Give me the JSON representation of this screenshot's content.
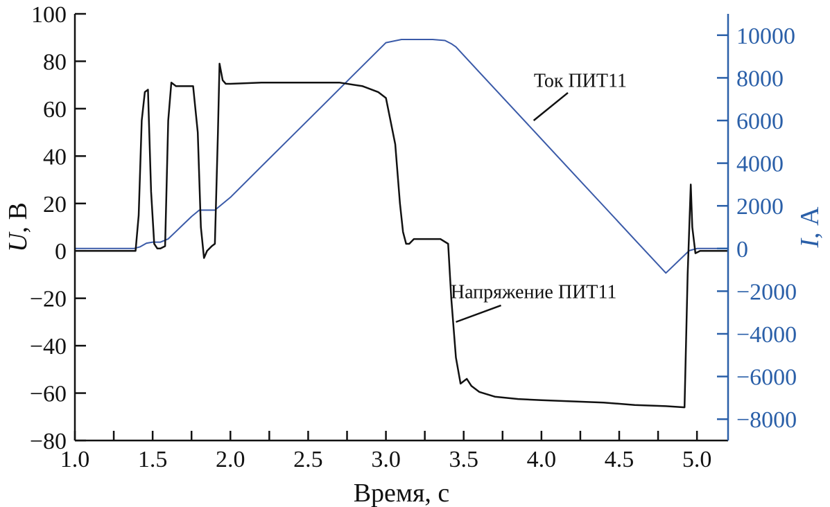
{
  "colors": {
    "voltage": "#111111",
    "current": "#3a5aa8",
    "right_axis": "#2a5fa8",
    "axis": "#111111"
  },
  "chart_data": {
    "type": "line",
    "xlabel": "Время, с",
    "ylabel_left": {
      "sym": "U",
      "unit": ", В"
    },
    "ylabel_right": {
      "sym": "I",
      "unit": ", А"
    },
    "xlim": [
      1.0,
      5.2
    ],
    "ylim_left": [
      -80,
      100
    ],
    "ylim_right": [
      -9000,
      11000
    ],
    "x_ticks": [
      "1.0",
      "1.5",
      "2.0",
      "2.5",
      "3.0",
      "3.5",
      "4.0",
      "4.5",
      "5.0"
    ],
    "x_tick_values": [
      1.0,
      1.5,
      2.0,
      2.5,
      3.0,
      3.5,
      4.0,
      4.5,
      5.0
    ],
    "y_left_ticks": [
      "100",
      "80",
      "60",
      "40",
      "20",
      "0",
      "−20",
      "−40",
      "−60",
      "−80"
    ],
    "y_left_tick_values": [
      100,
      80,
      60,
      40,
      20,
      0,
      -20,
      -40,
      -60,
      -80
    ],
    "y_right_ticks": [
      "10000",
      "8000",
      "6000",
      "4000",
      "2000",
      "0",
      "−2000",
      "−4000",
      "−6000",
      "−8000"
    ],
    "y_right_tick_values": [
      10000,
      8000,
      6000,
      4000,
      2000,
      0,
      -2000,
      -4000,
      -6000,
      -8000
    ],
    "grid": false,
    "annotations": [
      {
        "text": "Ток ПИТ11",
        "series": "current",
        "target": [
          3.95,
          6000
        ],
        "label_at": [
          4.25,
          7900
        ]
      },
      {
        "text": "Напряжение ПИТ11",
        "series": "voltage",
        "target": [
          3.45,
          -30
        ],
        "label_at": [
          3.95,
          -17
        ]
      }
    ],
    "series": [
      {
        "name": "Ток ПИТ11",
        "axis": "right",
        "x": [
          1.0,
          1.38,
          1.42,
          1.46,
          1.5,
          1.55,
          1.6,
          1.65,
          1.7,
          1.75,
          1.8,
          1.9,
          2.0,
          2.2,
          2.4,
          2.6,
          2.8,
          3.0,
          3.1,
          3.15,
          3.2,
          3.3,
          3.38,
          3.42,
          3.45,
          3.6,
          3.8,
          4.0,
          4.2,
          4.4,
          4.6,
          4.8,
          4.95,
          5.0,
          5.2
        ],
        "y": [
          0,
          0,
          80,
          250,
          300,
          300,
          450,
          800,
          1150,
          1500,
          1800,
          1800,
          2400,
          3850,
          5300,
          6750,
          8200,
          9650,
          9800,
          9800,
          9800,
          9800,
          9750,
          9600,
          9450,
          8270,
          6700,
          5130,
          3560,
          1990,
          420,
          -1150,
          -100,
          0,
          0
        ]
      },
      {
        "name": "Напряжение ПИТ11",
        "axis": "left",
        "x": [
          1.0,
          1.39,
          1.41,
          1.43,
          1.45,
          1.47,
          1.49,
          1.51,
          1.53,
          1.55,
          1.58,
          1.6,
          1.62,
          1.65,
          1.7,
          1.76,
          1.79,
          1.81,
          1.83,
          1.85,
          1.88,
          1.9,
          1.92,
          1.93,
          1.95,
          1.97,
          2.0,
          2.2,
          2.5,
          2.7,
          2.85,
          2.95,
          3.0,
          3.06,
          3.09,
          3.11,
          3.13,
          3.15,
          3.18,
          3.21,
          3.25,
          3.35,
          3.4,
          3.42,
          3.45,
          3.48,
          3.5,
          3.52,
          3.55,
          3.6,
          3.7,
          3.85,
          4.0,
          4.2,
          4.4,
          4.6,
          4.8,
          4.92,
          4.94,
          4.96,
          4.97,
          4.99,
          5.02,
          5.05,
          5.2
        ],
        "y": [
          0,
          0,
          15,
          55,
          67,
          68,
          25,
          3,
          1,
          1,
          2,
          55,
          71,
          69.5,
          69.5,
          69.5,
          50,
          10,
          -3,
          0,
          2,
          3,
          50,
          79,
          72,
          70.5,
          70.5,
          71,
          71,
          71,
          69.5,
          67,
          64.5,
          45,
          20,
          8,
          3,
          3,
          5,
          5,
          5,
          5,
          3,
          -20,
          -45,
          -56,
          -55,
          -54,
          -57,
          -59.5,
          -61.5,
          -62.5,
          -63,
          -63.5,
          -64,
          -65,
          -65.5,
          -66,
          -10,
          28,
          10,
          -1,
          0,
          0,
          0
        ]
      }
    ]
  }
}
